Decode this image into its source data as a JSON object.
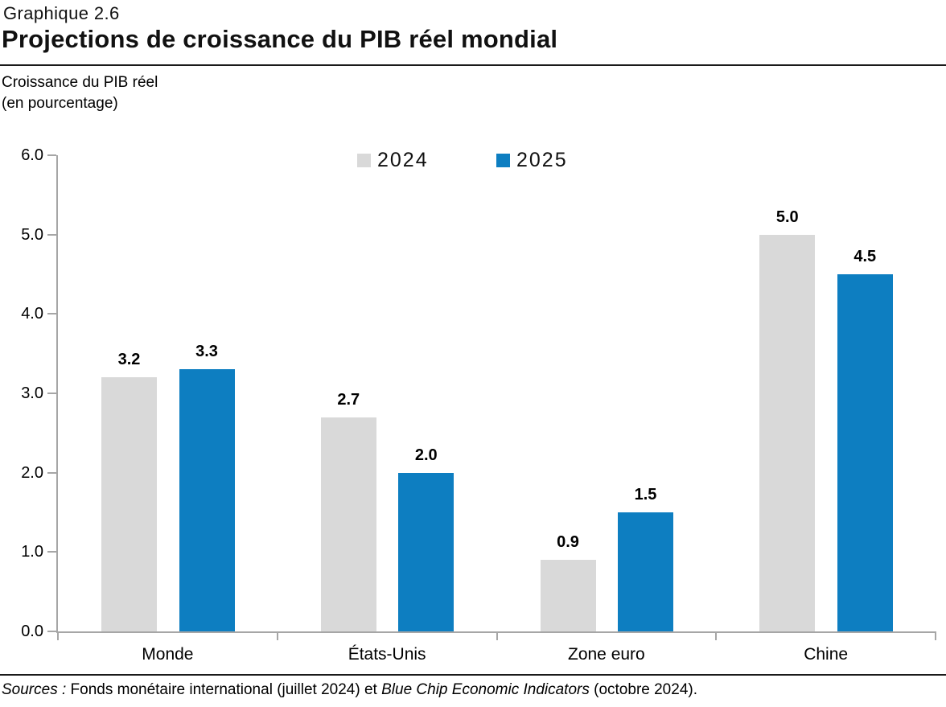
{
  "header": {
    "label": "Graphique 2.6",
    "title": "Projections de croissance du PIB réel mondial"
  },
  "caption": {
    "line1": "Croissance du PIB réel",
    "line2": "(en pourcentage)"
  },
  "chart_data": {
    "type": "bar",
    "title": "Projections de croissance du PIB réel mondial",
    "ylabel": "Croissance du PIB réel (en pourcentage)",
    "xlabel": "",
    "categories": [
      "Monde",
      "États-Unis",
      "Zone euro",
      "Chine"
    ],
    "series": [
      {
        "name": "2024",
        "color": "#d9d9d9",
        "values": [
          3.2,
          2.7,
          0.9,
          5.0
        ]
      },
      {
        "name": "2025",
        "color": "#0d7ec1",
        "values": [
          3.3,
          2.0,
          1.5,
          4.5
        ]
      }
    ],
    "ylim": [
      0,
      6
    ],
    "ytick_step": 1.0,
    "yticks": [
      "0.0",
      "1.0",
      "2.0",
      "3.0",
      "4.0",
      "5.0",
      "6.0"
    ],
    "grid": false,
    "data_labels": true,
    "legend_position": "top-center"
  },
  "colors": {
    "bar_2024": "#d9d9d9",
    "bar_2025": "#0d7ec1",
    "axis_line": "#a6a6a6",
    "rule": "#1a1a1a",
    "text": "#000000"
  },
  "footer": {
    "segments": [
      {
        "text": "Sources :",
        "italic": true
      },
      {
        "text": " Fonds monétaire international (juillet 2024) et ",
        "italic": false
      },
      {
        "text": "Blue Chip Economic Indicators",
        "italic": true
      },
      {
        "text": " (octobre 2024).",
        "italic": false
      }
    ]
  }
}
